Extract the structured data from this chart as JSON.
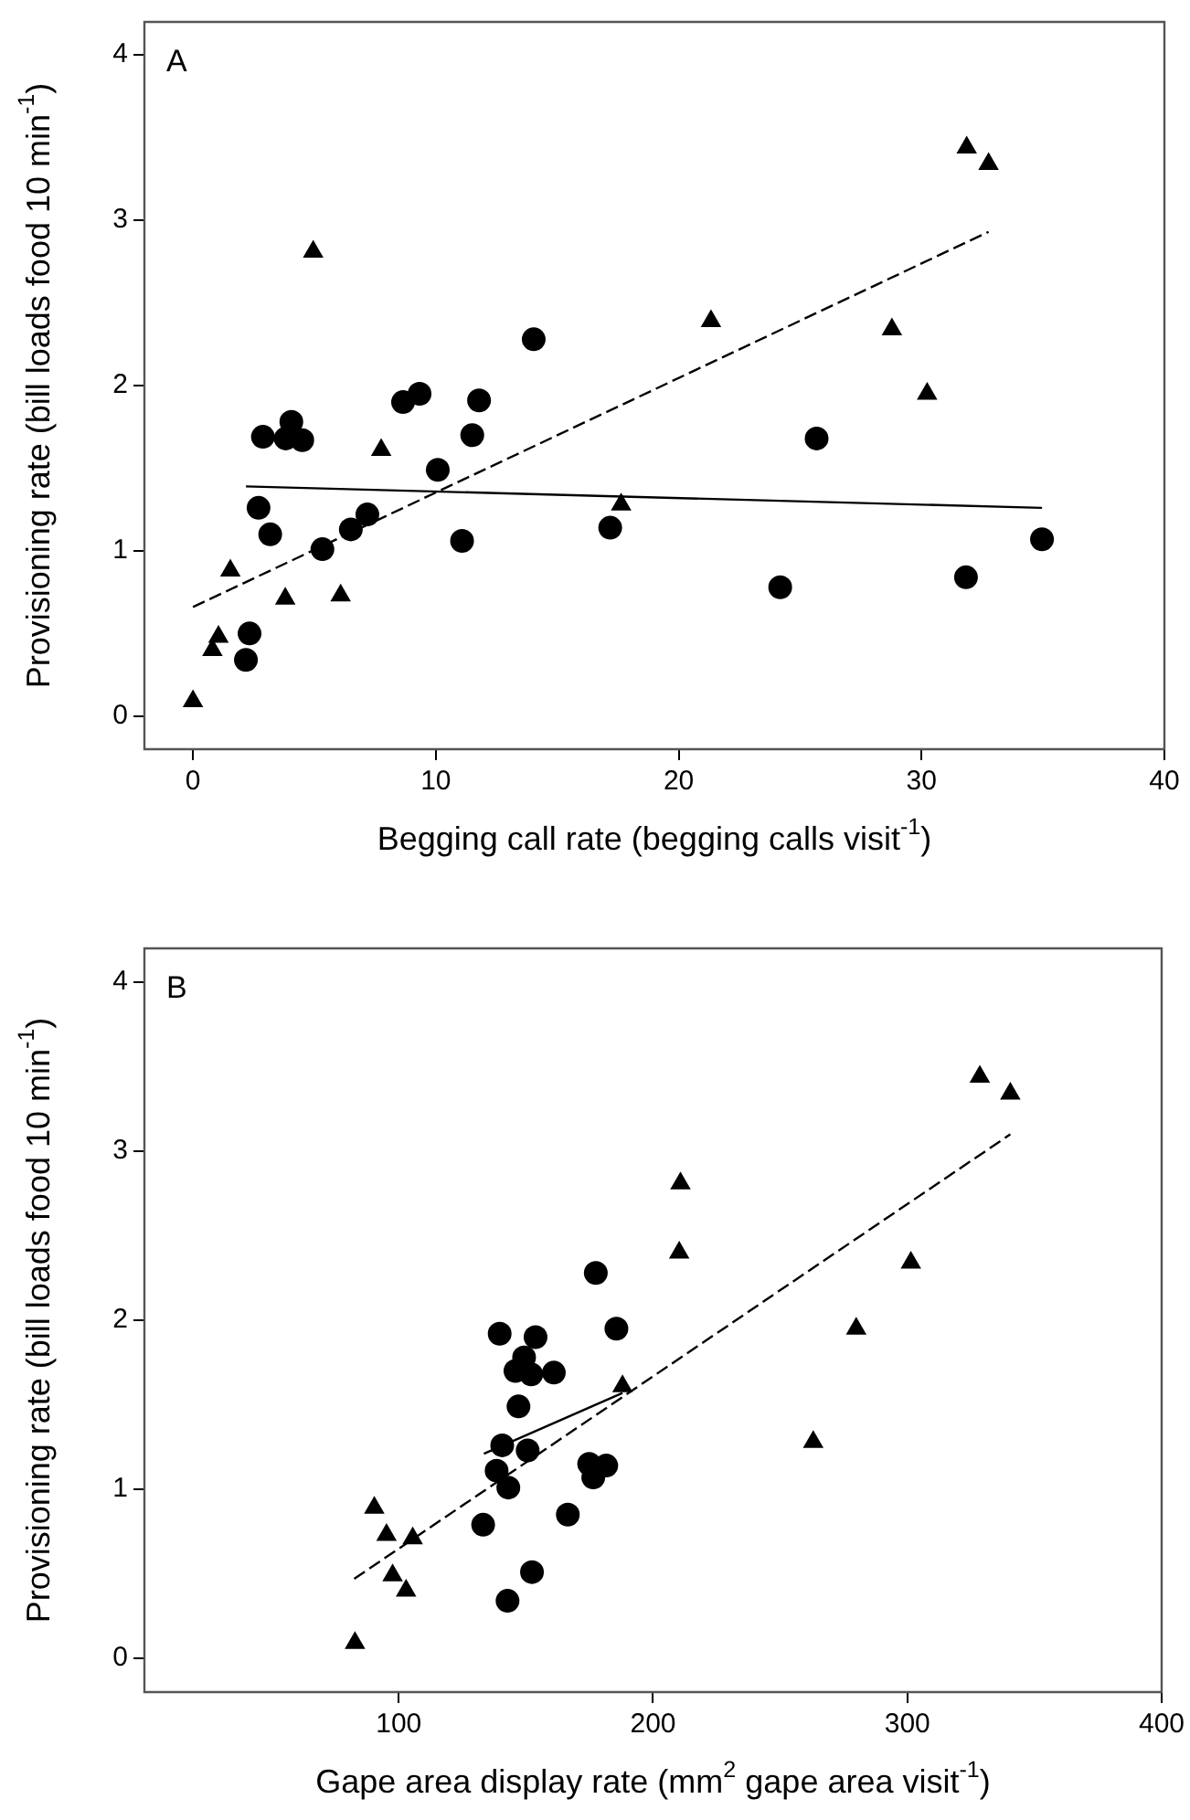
{
  "chart_data": [
    {
      "type": "scatter",
      "title": "A",
      "xlabel": "Begging call rate (begging calls visit$^{-1}$)",
      "ylabel": "Provisioning rate (bill loads food 10 min$^{-1}$)",
      "xlim": [
        -2,
        40
      ],
      "xticks": [
        0,
        10,
        20,
        30,
        40
      ],
      "ylim": [
        -0.2,
        4.2
      ],
      "yticks": [
        0,
        1,
        2,
        3,
        4
      ],
      "grid": false,
      "legend": false,
      "series": [
        {
          "type": "scatter",
          "marker": "circle",
          "color": "#000000",
          "x": [
            2.88,
            4.05,
            3.82,
            4.5,
            2.7,
            3.18,
            2.33,
            2.18,
            5.33,
            6.5,
            7.18,
            8.65,
            9.33,
            10.08,
            11.08,
            11.5,
            11.78,
            14.03,
            17.18,
            25.68,
            24.18,
            31.83,
            34.96
          ],
          "values": [
            1.69,
            1.78,
            1.68,
            1.67,
            1.26,
            1.1,
            0.5,
            0.34,
            1.01,
            1.13,
            1.22,
            1.9,
            1.95,
            1.49,
            1.06,
            1.7,
            1.91,
            2.28,
            1.14,
            1.68,
            0.78,
            0.84,
            1.07
          ]
        },
        {
          "type": "scatter",
          "marker": "triangle",
          "color": "#000000",
          "x": [
            0,
            0.8,
            1.05,
            1.54,
            3.8,
            6.08,
            4.95,
            7.75,
            17.63,
            21.33,
            28.78,
            30.23,
            31.86,
            32.76
          ],
          "values": [
            0.09,
            0.4,
            0.48,
            0.88,
            0.71,
            0.73,
            2.81,
            1.61,
            1.28,
            2.39,
            2.34,
            1.95,
            3.44,
            3.34
          ]
        },
        {
          "type": "line",
          "line_style": "dashed",
          "color": "#000000",
          "x": [
            0,
            32.76
          ],
          "values": [
            0.66,
            2.93
          ]
        },
        {
          "type": "line",
          "line_style": "solid",
          "color": "#000000",
          "x": [
            2.18,
            34.96
          ],
          "values": [
            1.39,
            1.26
          ]
        }
      ]
    },
    {
      "type": "scatter",
      "title": "B",
      "xlabel": "Gape area display rate (mm$^{2}$ gape area visit$^{-1}$)",
      "ylabel": "Provisioning rate (bill loads food 10 min$^{-1}$)",
      "xlim": [
        0,
        400
      ],
      "xticks": [
        100,
        200,
        300,
        400
      ],
      "ylim": [
        -0.2,
        4.2
      ],
      "yticks": [
        0,
        1,
        2,
        3,
        4
      ],
      "grid": false,
      "legend": false,
      "series": [
        {
          "type": "scatter",
          "marker": "circle",
          "color": "#000000",
          "x": [
            139.7,
            153.8,
            149.3,
            145.9,
            152.1,
            161,
            147.1,
            140.7,
            150.7,
            138.5,
            143.1,
            133.2,
            166.5,
            152.4,
            142.8,
            177.5,
            185.6,
            174.9,
            176.5,
            181.6
          ],
          "values": [
            1.92,
            1.9,
            1.78,
            1.7,
            1.68,
            1.69,
            1.49,
            1.26,
            1.23,
            1.11,
            1.01,
            0.79,
            0.85,
            0.51,
            0.34,
            2.28,
            1.95,
            1.15,
            1.07,
            1.14
          ]
        },
        {
          "type": "scatter",
          "marker": "triangle",
          "color": "#000000",
          "x": [
            90.4,
            95.2,
            105.5,
            97.6,
            102.9,
            82.8,
            188,
            210.8,
            210.3,
            301.4,
            279.9,
            263,
            328.5,
            340.5
          ],
          "values": [
            0.89,
            0.73,
            0.71,
            0.49,
            0.4,
            0.09,
            1.61,
            2.81,
            2.4,
            2.34,
            1.95,
            1.28,
            3.44,
            3.34
          ]
        },
        {
          "type": "line",
          "line_style": "dashed",
          "color": "#000000",
          "x": [
            82.5,
            340.5
          ],
          "values": [
            0.47,
            3.1
          ]
        },
        {
          "type": "line",
          "line_style": "solid",
          "color": "#000000",
          "x": [
            133.5,
            188
          ],
          "values": [
            1.21,
            1.57
          ]
        }
      ]
    }
  ]
}
